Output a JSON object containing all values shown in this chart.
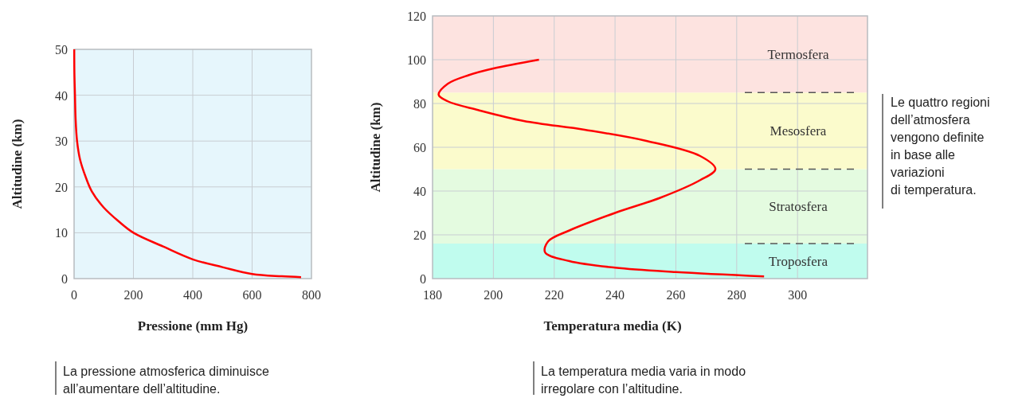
{
  "chart_data": [
    {
      "type": "line",
      "xlabel": "Pressione (mm Hg)",
      "ylabel": "Altitudine (km)",
      "xlim": [
        0,
        800
      ],
      "ylim": [
        0,
        50
      ],
      "xticks": [
        0,
        200,
        400,
        600,
        800
      ],
      "yticks": [
        0,
        10,
        20,
        30,
        40,
        50
      ],
      "grid": true,
      "series": [
        {
          "color": "#ff0000",
          "x": [
            765,
            700,
            600,
            500,
            400,
            300,
            200,
            150,
            100,
            60,
            40,
            20,
            10,
            5,
            3,
            1,
            0.5
          ],
          "values": [
            0.3,
            0.5,
            1,
            2.5,
            4.2,
            7,
            10,
            12.5,
            15.5,
            19,
            22,
            26,
            30,
            35,
            40,
            45,
            50
          ]
        }
      ],
      "annotations": [
        "La pressione atmosferica diminuisce\nall’aumentare dell’altitudine."
      ]
    },
    {
      "type": "line",
      "xlabel": "Temperatura media (K)",
      "ylabel": "Altitudine (km)",
      "xlim": [
        180,
        323
      ],
      "ylim": [
        0,
        120
      ],
      "xticks": [
        180,
        200,
        220,
        240,
        260,
        280,
        300
      ],
      "yticks": [
        0,
        20,
        40,
        60,
        80,
        100,
        120
      ],
      "grid": true,
      "series": [
        {
          "color": "#ff0000",
          "x": [
            289,
            260,
            240,
            225,
            217,
            218,
            225,
            240,
            255,
            268,
            273,
            268,
            250,
            230,
            210,
            195,
            185,
            182,
            185,
            192,
            200,
            215
          ],
          "values": [
            1,
            3,
            5,
            8,
            12,
            17,
            22,
            30,
            37,
            45,
            50,
            56,
            63,
            68,
            72,
            77,
            81,
            84,
            89,
            93,
            96,
            100
          ]
        }
      ],
      "bands": [
        {
          "axis": "y",
          "from": 0,
          "to": 16,
          "label": "Troposfera",
          "color": "#c0fcee"
        },
        {
          "axis": "y",
          "from": 16,
          "to": 50,
          "label": "Stratosfera",
          "color": "#e4fbe0"
        },
        {
          "axis": "y",
          "from": 50,
          "to": 85,
          "label": "Mesosfera",
          "color": "#fbfbcc"
        },
        {
          "axis": "y",
          "from": 85,
          "to": 120,
          "label": "Termosfera",
          "color": "#fde3e0"
        }
      ],
      "ref_lines": [
        {
          "axis": "y",
          "value": 16,
          "line_style": "dashed"
        },
        {
          "axis": "y",
          "value": 50,
          "line_style": "dashed"
        },
        {
          "axis": "y",
          "value": 85,
          "line_style": "dashed"
        }
      ],
      "annotations": [
        "Le quattro regioni\ndell’atmosfera\nvengono definite\nin base alle\nvariazioni\ndi temperatura.",
        "La temperatura media varia in modo\nirregolare con l’altitudine."
      ]
    }
  ]
}
